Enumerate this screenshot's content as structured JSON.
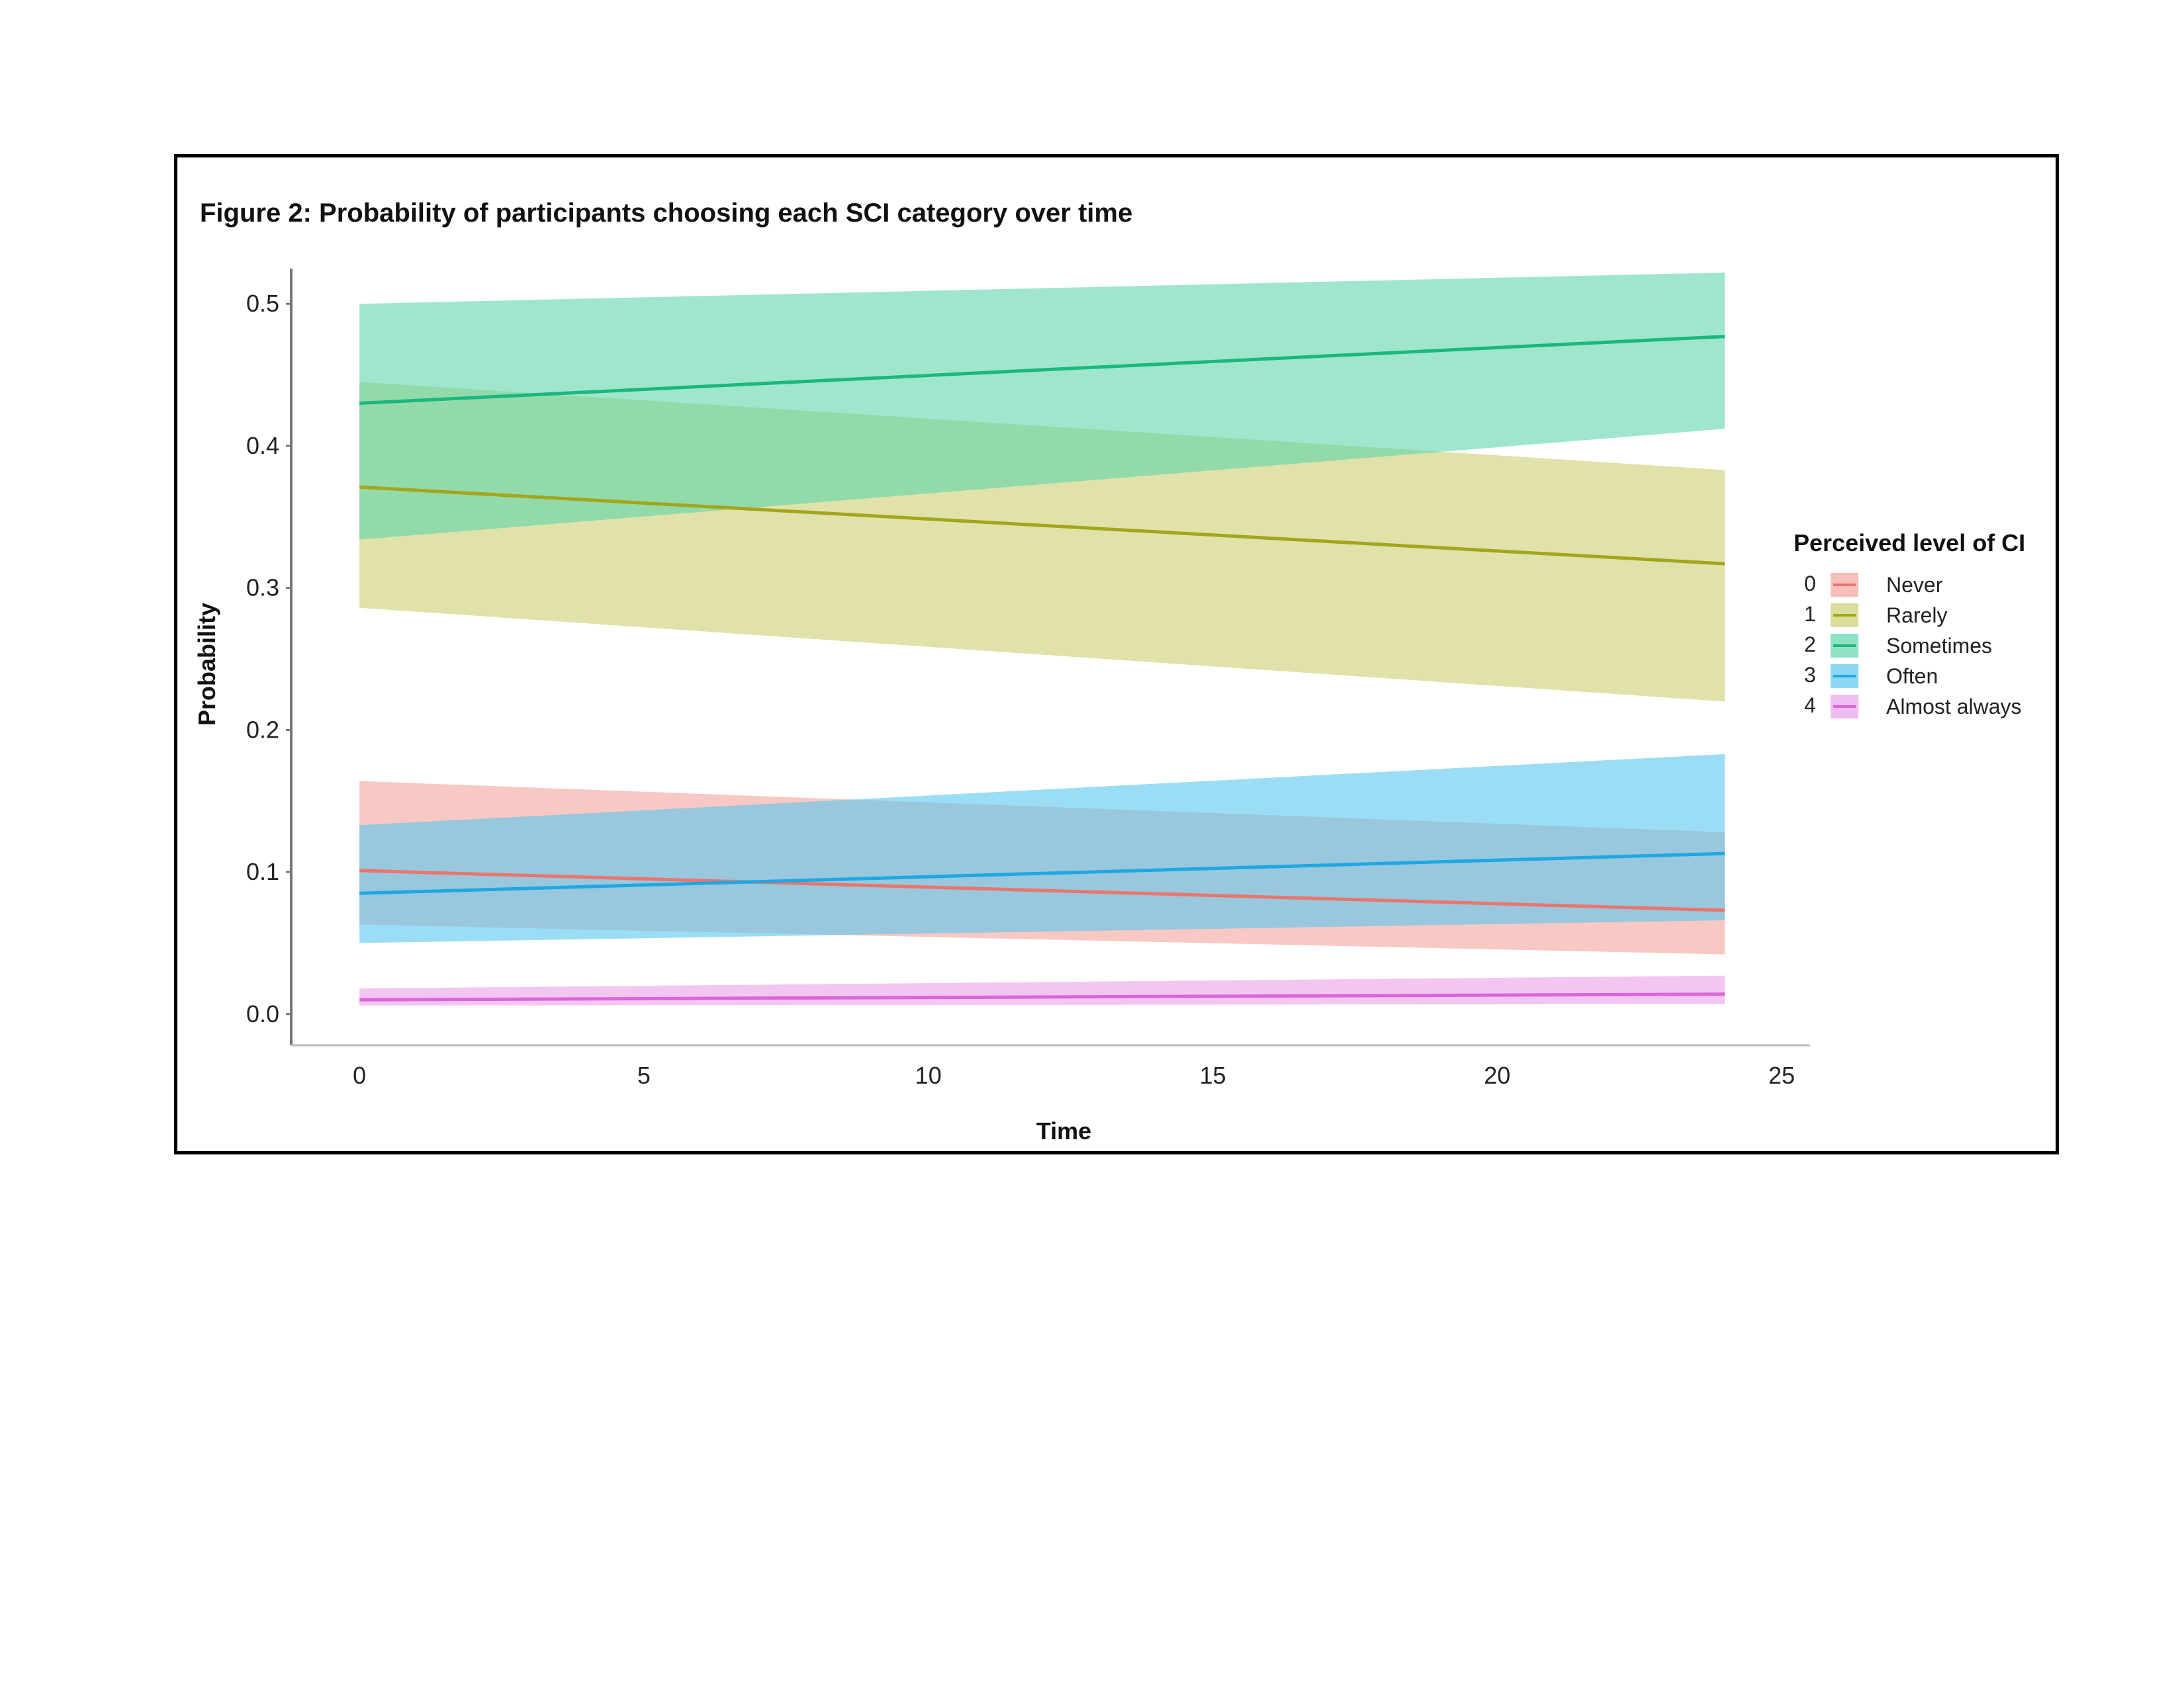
{
  "figure": {
    "title": "Figure 2: Probability of participants choosing each SCI category over time"
  },
  "chart_data": {
    "type": "line",
    "title": "Figure 2: Probability of participants choosing each SCI category over time",
    "xlabel": "Time",
    "ylabel": "Probability",
    "xlim": [
      -1.2,
      25.5
    ],
    "ylim": [
      -0.022,
      0.522
    ],
    "x_ticks": [
      0,
      5,
      10,
      15,
      20,
      25
    ],
    "x_tick_labels": [
      "0",
      "5",
      "10",
      "15",
      "20",
      "25"
    ],
    "y_ticks": [
      0.0,
      0.1,
      0.2,
      0.3,
      0.4,
      0.5
    ],
    "y_tick_labels": [
      "0.0",
      "0.1",
      "0.2",
      "0.3",
      "0.4",
      "0.5"
    ],
    "grid": false,
    "legend_position": "right",
    "legend_title": "Perceived level of CI",
    "x": [
      0,
      24
    ],
    "series": [
      {
        "code": "0",
        "name": "Never",
        "color": "#e8766c",
        "band_color": "#f4a49c",
        "values": [
          0.101,
          0.073
        ],
        "lower": [
          0.063,
          0.042
        ],
        "upper": [
          0.164,
          0.128
        ]
      },
      {
        "code": "1",
        "name": "Rarely",
        "color": "#a3a51c",
        "band_color": "#cccf72",
        "values": [
          0.371,
          0.317
        ],
        "lower": [
          0.286,
          0.22
        ],
        "upper": [
          0.445,
          0.383
        ]
      },
      {
        "code": "2",
        "name": "Sometimes",
        "color": "#1bb87e",
        "band_color": "#5fd5aa",
        "values": [
          0.43,
          0.477
        ],
        "lower": [
          0.334,
          0.412
        ],
        "upper": [
          0.5,
          0.522
        ]
      },
      {
        "code": "3",
        "name": "Often",
        "color": "#1fa7e2",
        "band_color": "#5ac6f0",
        "values": [
          0.085,
          0.113
        ],
        "lower": [
          0.05,
          0.066
        ],
        "upper": [
          0.133,
          0.183
        ]
      },
      {
        "code": "4",
        "name": "Almost always",
        "color": "#da66d8",
        "band_color": "#eba0ea",
        "values": [
          0.01,
          0.014
        ],
        "lower": [
          0.006,
          0.007
        ],
        "upper": [
          0.018,
          0.027
        ]
      }
    ]
  }
}
